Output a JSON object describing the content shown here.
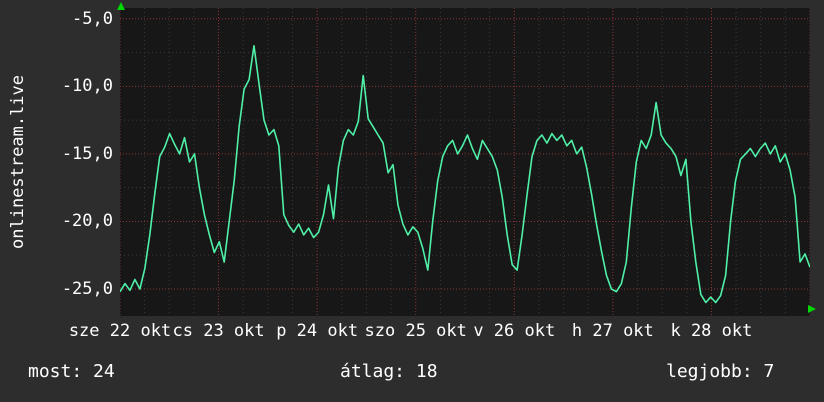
{
  "site_label": "onlinestream.live",
  "colors": {
    "background": "#2d2d2d",
    "plot_background": "#171717",
    "line": "#4ff0a8",
    "text": "#ffffff",
    "grid_major": "#8a3535",
    "grid_minor": "#3a3a3a",
    "axis_arrow": "#00d800"
  },
  "stats": {
    "most": "most: 24",
    "atlag": "átlag: 18",
    "legjobb": "legjobb: 7"
  },
  "chart_data": {
    "type": "line",
    "title": "onlinestream.live",
    "xlabel": "",
    "ylabel": "",
    "legend_position": "none",
    "grid": true,
    "days": 7,
    "x_tick_labels": [
      "sze 22 okt",
      "cs 23 okt",
      "p 24 okt",
      "szo 25 okt",
      "v 26 okt",
      "h 27 okt",
      "k 28 okt"
    ],
    "y_tick_labels": [
      "-5,0",
      "-10,0",
      "-15,0",
      "-20,0",
      "-25,0"
    ],
    "y_tick_values": [
      -5,
      -10,
      -15,
      -20,
      -25
    ],
    "ylim": [
      -27,
      -4.2
    ],
    "line_color": "#4ff0a8",
    "summary": {
      "most": 24,
      "atlag": 18,
      "legjobb": 7
    },
    "values": [
      -25.2,
      -24.6,
      -25.1,
      -24.3,
      -25.0,
      -23.5,
      -21.0,
      -18.0,
      -15.2,
      -14.5,
      -13.5,
      -14.3,
      -15.0,
      -13.8,
      -15.6,
      -15.0,
      -17.5,
      -19.5,
      -21.0,
      -22.3,
      -21.5,
      -23.0,
      -20.0,
      -17.0,
      -13.0,
      -10.2,
      -9.5,
      -7.0,
      -9.8,
      -12.5,
      -13.6,
      -13.2,
      -14.4,
      -19.5,
      -20.3,
      -20.8,
      -20.2,
      -21.0,
      -20.5,
      -21.2,
      -20.8,
      -19.5,
      -17.3,
      -19.8,
      -16.0,
      -14.0,
      -13.2,
      -13.6,
      -12.6,
      -9.2,
      -12.4,
      -13.0,
      -13.6,
      -14.2,
      -16.4,
      -15.8,
      -18.8,
      -20.2,
      -21.0,
      -20.4,
      -20.8,
      -22.0,
      -23.6,
      -20.0,
      -17.0,
      -15.2,
      -14.4,
      -14.0,
      -15.0,
      -14.4,
      -13.6,
      -14.6,
      -15.4,
      -14.0,
      -14.6,
      -15.2,
      -16.2,
      -18.2,
      -21.0,
      -23.2,
      -23.6,
      -21.0,
      -18.0,
      -15.2,
      -14.0,
      -13.6,
      -14.2,
      -13.5,
      -14.0,
      -13.6,
      -14.4,
      -14.0,
      -15.0,
      -14.5,
      -16.0,
      -18.0,
      -20.2,
      -22.2,
      -24.0,
      -25.0,
      -25.2,
      -24.6,
      -23.0,
      -19.0,
      -15.6,
      -14.0,
      -14.6,
      -13.6,
      -11.2,
      -13.6,
      -14.2,
      -14.6,
      -15.2,
      -16.6,
      -15.4,
      -20.0,
      -23.0,
      -25.4,
      -26.0,
      -25.6,
      -26.0,
      -25.5,
      -24.0,
      -20.0,
      -17.0,
      -15.4,
      -15.0,
      -14.6,
      -15.2,
      -14.6,
      -14.2,
      -15.0,
      -14.4,
      -15.6,
      -15.0,
      -16.2,
      -18.2,
      -23.0,
      -22.4,
      -23.4
    ]
  }
}
